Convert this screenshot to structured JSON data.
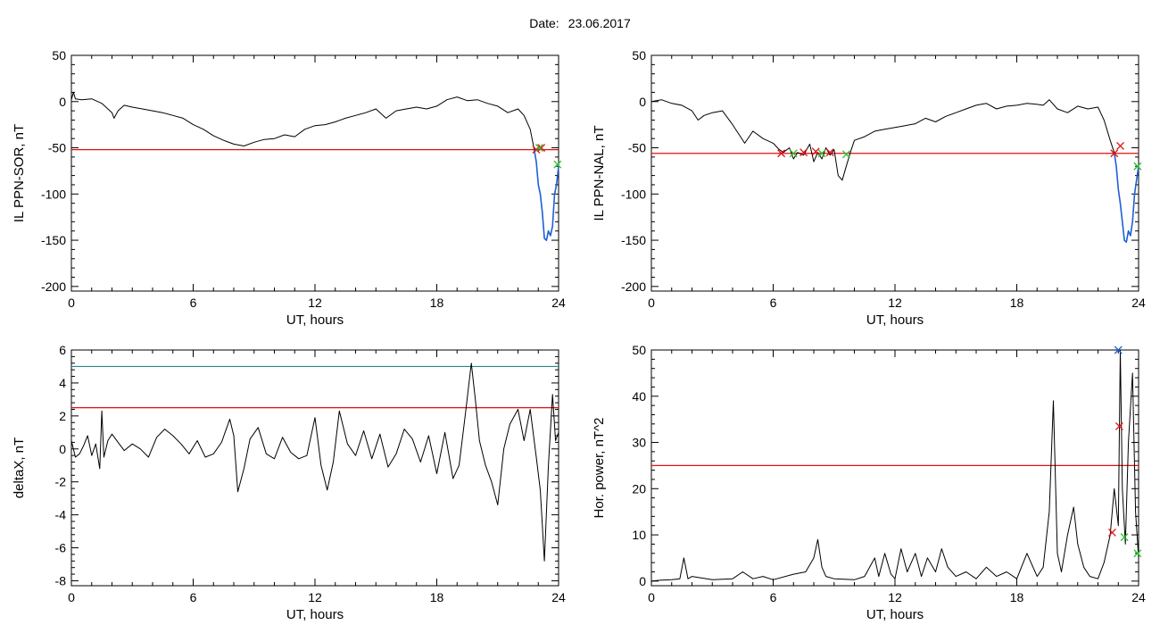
{
  "header": {
    "date_label": "Date:",
    "date_value": "23.06.2017"
  },
  "colors": {
    "trace": "#000000",
    "highlight": "#1f5fd6",
    "threshold_red": "#e01010",
    "threshold_teal": "#2a8a8a",
    "marker_red": "#e01010",
    "marker_green": "#2bbf2b",
    "marker_blue": "#3070d0"
  },
  "chart_data": [
    {
      "id": "sor",
      "type": "line",
      "title": "",
      "xlabel": "UT, hours",
      "ylabel": "IL PPN-SOR, nT",
      "xlim": [
        0,
        24
      ],
      "ylim": [
        -205,
        50
      ],
      "xticks": [
        0,
        6,
        12,
        18,
        24
      ],
      "yticks": [
        50,
        0,
        -50,
        -100,
        -150,
        -200
      ],
      "threshold": -52,
      "series": [
        {
          "color": "black",
          "x": [
            0,
            0.1,
            0.2,
            0.5,
            1,
            1.5,
            1.8,
            2.0,
            2.1,
            2.3,
            2.6,
            3,
            3.5,
            4,
            4.5,
            5,
            5.5,
            6,
            6.5,
            7,
            7.5,
            8,
            8.5,
            9,
            9.5,
            10,
            10.5,
            11,
            11.5,
            12,
            12.5,
            13,
            13.5,
            14,
            14.5,
            15,
            15.5,
            16,
            16.5,
            17,
            17.5,
            18,
            18.5,
            19,
            19.5,
            20,
            20.5,
            21,
            21.5,
            22,
            22.3,
            22.6,
            22.8
          ],
          "y": [
            2,
            10,
            3,
            2,
            3,
            -2,
            -8,
            -12,
            -18,
            -10,
            -4,
            -6,
            -8,
            -10,
            -12,
            -15,
            -18,
            -25,
            -30,
            -37,
            -42,
            -46,
            -48,
            -44,
            -41,
            -40,
            -36,
            -38,
            -30,
            -26,
            -25,
            -22,
            -18,
            -15,
            -12,
            -8,
            -18,
            -10,
            -8,
            -6,
            -8,
            -5,
            2,
            5,
            1,
            2,
            -2,
            -5,
            -12,
            -8,
            -15,
            -30,
            -52
          ]
        },
        {
          "color": "blue",
          "x": [
            22.8,
            22.9,
            23.0,
            23.1,
            23.2,
            23.3,
            23.4,
            23.5,
            23.6,
            23.7,
            23.8,
            23.9,
            24.0
          ],
          "y": [
            -52,
            -65,
            -90,
            -100,
            -120,
            -148,
            -150,
            -140,
            -145,
            -135,
            -100,
            -90,
            -70
          ]
        }
      ],
      "markers": [
        {
          "x": 22.9,
          "y": -52,
          "color": "red",
          "symbol": "x"
        },
        {
          "x": 23.15,
          "y": -50,
          "color": "red",
          "symbol": "x"
        },
        {
          "x": 23.05,
          "y": -50,
          "color": "green",
          "symbol": "x"
        },
        {
          "x": 23.95,
          "y": -68,
          "color": "green",
          "symbol": "x"
        }
      ]
    },
    {
      "id": "nal",
      "type": "line",
      "title": "",
      "xlabel": "UT, hours",
      "ylabel": "IL PPN-NAL, nT",
      "xlim": [
        0,
        24
      ],
      "ylim": [
        -205,
        50
      ],
      "xticks": [
        0,
        6,
        12,
        18,
        24
      ],
      "yticks": [
        50,
        0,
        -50,
        -100,
        -150,
        -200
      ],
      "threshold": -56,
      "series": [
        {
          "color": "black",
          "x": [
            0,
            0.5,
            1,
            1.5,
            2,
            2.3,
            2.6,
            3,
            3.5,
            4,
            4.3,
            4.6,
            5,
            5.5,
            6,
            6.3,
            6.5,
            6.8,
            7,
            7.2,
            7.5,
            7.8,
            8,
            8.2,
            8.4,
            8.6,
            8.8,
            9,
            9.2,
            9.4,
            9.6,
            9.8,
            10,
            10.5,
            11,
            11.5,
            12,
            12.5,
            13,
            13.5,
            14,
            14.5,
            15,
            15.5,
            16,
            16.5,
            17,
            17.5,
            18,
            18.5,
            19,
            19.3,
            19.6,
            20,
            20.5,
            21,
            21.5,
            22,
            22.3,
            22.6,
            22.8
          ],
          "y": [
            0,
            2,
            -2,
            -4,
            -10,
            -20,
            -15,
            -12,
            -10,
            -25,
            -35,
            -45,
            -32,
            -40,
            -45,
            -52,
            -55,
            -50,
            -62,
            -55,
            -58,
            -46,
            -65,
            -55,
            -62,
            -50,
            -58,
            -52,
            -80,
            -85,
            -70,
            -55,
            -42,
            -38,
            -32,
            -30,
            -28,
            -26,
            -24,
            -18,
            -22,
            -16,
            -12,
            -8,
            -4,
            -2,
            -8,
            -5,
            -4,
            -2,
            -3,
            -4,
            2,
            -8,
            -12,
            -5,
            -8,
            -6,
            -20,
            -42,
            -55
          ]
        },
        {
          "color": "blue",
          "x": [
            22.8,
            22.9,
            23.0,
            23.1,
            23.2,
            23.3,
            23.4,
            23.5,
            23.6,
            23.7,
            23.8,
            23.9,
            24.0
          ],
          "y": [
            -55,
            -70,
            -95,
            -110,
            -130,
            -150,
            -152,
            -140,
            -145,
            -130,
            -100,
            -85,
            -70
          ]
        }
      ],
      "markers": [
        {
          "x": 6.4,
          "y": -56,
          "color": "red",
          "symbol": "x"
        },
        {
          "x": 7.0,
          "y": -56,
          "color": "green",
          "symbol": "x"
        },
        {
          "x": 7.5,
          "y": -55,
          "color": "red",
          "symbol": "x"
        },
        {
          "x": 8.1,
          "y": -54,
          "color": "red",
          "symbol": "x"
        },
        {
          "x": 8.4,
          "y": -56,
          "color": "green",
          "symbol": "x"
        },
        {
          "x": 8.8,
          "y": -55,
          "color": "red",
          "symbol": "x"
        },
        {
          "x": 9.6,
          "y": -57,
          "color": "green",
          "symbol": "x"
        },
        {
          "x": 22.8,
          "y": -56,
          "color": "red",
          "symbol": "x"
        },
        {
          "x": 23.1,
          "y": -48,
          "color": "red",
          "symbol": "x"
        },
        {
          "x": 23.95,
          "y": -70,
          "color": "green",
          "symbol": "x"
        }
      ]
    },
    {
      "id": "deltax",
      "type": "line",
      "title": "",
      "xlabel": "UT, hours",
      "ylabel": "deltaX, nT",
      "xlim": [
        0,
        24
      ],
      "ylim": [
        -8.3,
        6
      ],
      "xticks": [
        0,
        6,
        12,
        18,
        24
      ],
      "yticks": [
        6,
        4,
        2,
        0,
        -2,
        -4,
        -6,
        -8
      ],
      "thresholds": [
        {
          "value": 5.0,
          "color": "teal"
        },
        {
          "value": 2.5,
          "color": "red"
        }
      ],
      "series": [
        {
          "color": "black",
          "x": [
            0,
            0.2,
            0.4,
            0.6,
            0.8,
            1.0,
            1.2,
            1.4,
            1.5,
            1.6,
            1.8,
            2.0,
            2.3,
            2.6,
            3,
            3.4,
            3.8,
            4.2,
            4.6,
            5,
            5.4,
            5.8,
            6.2,
            6.6,
            7,
            7.4,
            7.8,
            8.0,
            8.2,
            8.5,
            8.8,
            9.2,
            9.6,
            10,
            10.4,
            10.8,
            11.2,
            11.6,
            12,
            12.3,
            12.6,
            12.9,
            13.2,
            13.6,
            14,
            14.4,
            14.8,
            15.2,
            15.6,
            16,
            16.4,
            16.8,
            17.2,
            17.6,
            18,
            18.4,
            18.8,
            19.1,
            19.4,
            19.7,
            19.9,
            20.1,
            20.4,
            20.7,
            21,
            21.3,
            21.6,
            22,
            22.3,
            22.6,
            22.9,
            23.1,
            23.3,
            23.5,
            23.7,
            23.85,
            24.0
          ],
          "y": [
            0.5,
            -0.5,
            -0.3,
            0.2,
            0.8,
            -0.4,
            0.3,
            -1.2,
            2.3,
            -0.5,
            0.5,
            0.9,
            0.4,
            -0.1,
            0.3,
            0.0,
            -0.5,
            0.7,
            1.2,
            0.8,
            0.3,
            -0.3,
            0.5,
            -0.5,
            -0.3,
            0.4,
            1.8,
            0.8,
            -2.6,
            -1.2,
            0.6,
            1.3,
            -0.3,
            -0.6,
            0.7,
            -0.2,
            -0.6,
            -0.4,
            1.9,
            -1.0,
            -2.5,
            -0.8,
            2.3,
            0.3,
            -0.4,
            1.1,
            -0.6,
            0.9,
            -1.1,
            -0.3,
            1.2,
            0.6,
            -0.8,
            0.8,
            -1.5,
            1.0,
            -1.8,
            -1.0,
            2.0,
            5.2,
            3.0,
            0.5,
            -1.0,
            -2.0,
            -3.4,
            0.0,
            1.5,
            2.4,
            0.5,
            2.4,
            -0.5,
            -2.5,
            -6.8,
            -1.0,
            3.3,
            0.5,
            1.0
          ]
        }
      ],
      "markers": []
    },
    {
      "id": "hpower",
      "type": "line",
      "title": "",
      "xlabel": "UT, hours",
      "ylabel": "Hor. power, nT^2",
      "xlim": [
        0,
        24
      ],
      "ylim": [
        -1,
        50
      ],
      "xticks": [
        0,
        6,
        12,
        18,
        24
      ],
      "yticks": [
        50,
        40,
        30,
        20,
        10,
        0
      ],
      "threshold": 25,
      "series": [
        {
          "color": "black",
          "x": [
            0,
            0.5,
            1,
            1.4,
            1.6,
            1.8,
            2,
            3,
            4,
            4.5,
            5,
            5.5,
            6,
            7,
            7.6,
            8,
            8.2,
            8.4,
            8.6,
            9,
            10,
            10.5,
            11,
            11.2,
            11.5,
            11.8,
            12,
            12.3,
            12.6,
            13,
            13.3,
            13.6,
            14,
            14.3,
            14.6,
            15,
            15.5,
            16,
            16.5,
            17,
            17.5,
            18,
            18.5,
            19,
            19.3,
            19.6,
            19.8,
            20,
            20.2,
            20.5,
            20.8,
            21,
            21.3,
            21.6,
            22,
            22.3,
            22.6,
            22.8,
            23.0,
            23.1,
            23.2,
            23.35,
            23.5,
            23.7,
            23.85,
            24.0
          ],
          "y": [
            0,
            0.2,
            0.3,
            0.5,
            5,
            0.5,
            1,
            0.3,
            0.5,
            2,
            0.5,
            1,
            0.3,
            1.5,
            2,
            5,
            9,
            3,
            1,
            0.5,
            0.3,
            1,
            5,
            1,
            6,
            1.5,
            0.5,
            7,
            2,
            6,
            1,
            5,
            2,
            7,
            3,
            1,
            2,
            0.5,
            3,
            1,
            2,
            0.5,
            6,
            1,
            3,
            15,
            39,
            6,
            2,
            10,
            16,
            8,
            3,
            1,
            0.5,
            4,
            10,
            20,
            12,
            50,
            20,
            8,
            30,
            45,
            15,
            5
          ]
        }
      ],
      "markers": [
        {
          "x": 22.7,
          "y": 10.5,
          "color": "red",
          "symbol": "x"
        },
        {
          "x": 23.05,
          "y": 33.5,
          "color": "red",
          "symbol": "x"
        },
        {
          "x": 23.0,
          "y": 50,
          "color": "blue",
          "symbol": "x"
        },
        {
          "x": 23.3,
          "y": 9.5,
          "color": "green",
          "symbol": "x"
        },
        {
          "x": 23.95,
          "y": 6,
          "color": "green",
          "symbol": "x"
        }
      ]
    }
  ]
}
